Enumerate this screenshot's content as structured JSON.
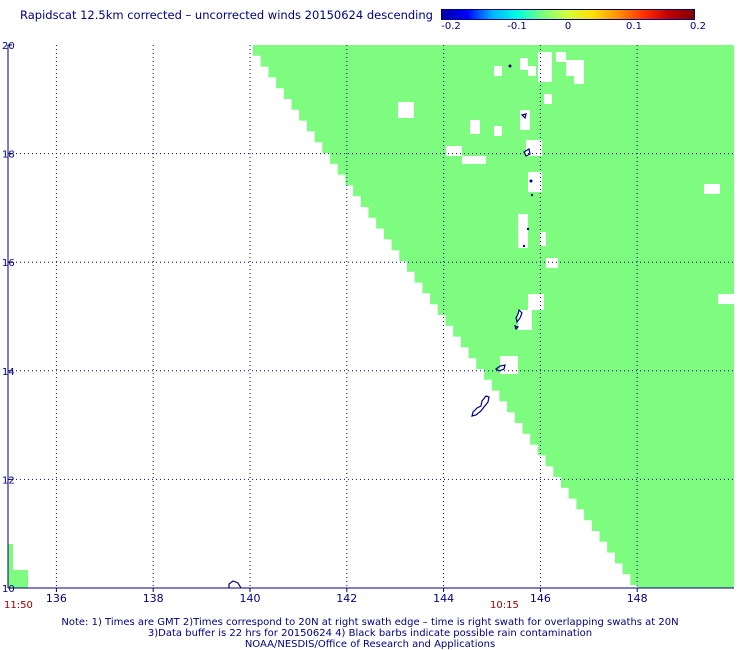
{
  "title": "Rapidscat 12.5km corrected – uncorrected winds 20150624 descending",
  "colorbar": {
    "labels": [
      "-0.2",
      "-0.1",
      "0",
      "0.1",
      "0.2"
    ],
    "colors": [
      "#0000a0",
      "#0000ff",
      "#00b4ff",
      "#00ffe0",
      "#7cff7c",
      "#d4ff3c",
      "#ffe000",
      "#ff9000",
      "#ff3000",
      "#c00000",
      "#800000"
    ]
  },
  "map": {
    "fill_color": "#7dfc80",
    "land_outline_color": "#000080",
    "lon_min": 135,
    "lon_max": 150,
    "lat_min": 10,
    "lat_max": 20,
    "lon_ticks": [
      "136",
      "138",
      "140",
      "142",
      "144",
      "146",
      "148"
    ],
    "lat_ticks": [
      "20",
      "18",
      "16",
      "14",
      "12",
      "10"
    ]
  },
  "times": [
    "11:50",
    "10:15"
  ],
  "notes": [
    "Note: 1) Times are GMT 2)Times correspond to 20N at right swath edge – time is right swath for overlapping swaths at 20N",
    "3)Data buffer is 22 hrs for 20150624 4) Black barbs indicate possible rain contamination",
    "NOAA/NESDIS/Office of Research and Applications"
  ]
}
